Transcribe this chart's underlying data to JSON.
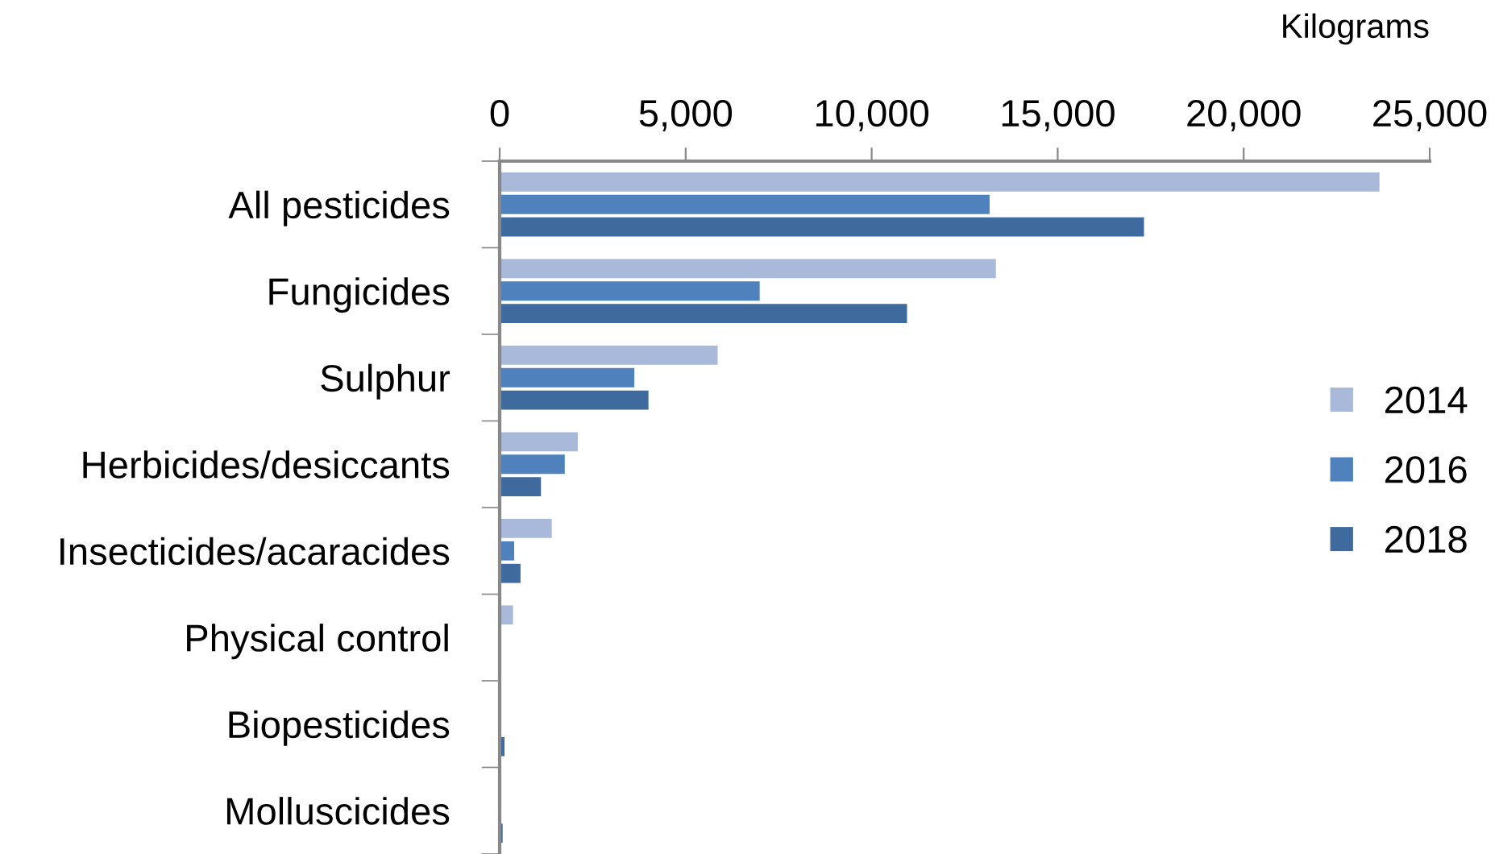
{
  "chart_data": {
    "type": "bar",
    "orientation": "horizontal",
    "xlabel": "Kilograms",
    "categories": [
      "All pesticides",
      "Fungicides",
      "Sulphur",
      "Herbicides/desiccants",
      "Insecticides/acaracides",
      "Physical control",
      "Biopesticides",
      "Molluscicides"
    ],
    "series": [
      {
        "name": "2014",
        "color": "#a9b9d9",
        "values": [
          23650,
          13340,
          5860,
          2100,
          1400,
          360,
          null,
          null
        ]
      },
      {
        "name": "2016",
        "color": "#4f81bd",
        "values": [
          13170,
          6990,
          3620,
          1750,
          390,
          0,
          0,
          0
        ]
      },
      {
        "name": "2018",
        "color": "#3f6a9e",
        "values": [
          17320,
          10950,
          4000,
          1110,
          560,
          0,
          130,
          80
        ]
      }
    ],
    "xlim": [
      0,
      25000
    ],
    "xticks": [
      {
        "value": 0,
        "label": "0"
      },
      {
        "value": 5000,
        "label": "5,000"
      },
      {
        "value": 10000,
        "label": "10,000"
      },
      {
        "value": 15000,
        "label": "15,000"
      },
      {
        "value": 20000,
        "label": "20,000"
      },
      {
        "value": 25000,
        "label": "25,000"
      }
    ],
    "grid": false,
    "legend": "right"
  }
}
